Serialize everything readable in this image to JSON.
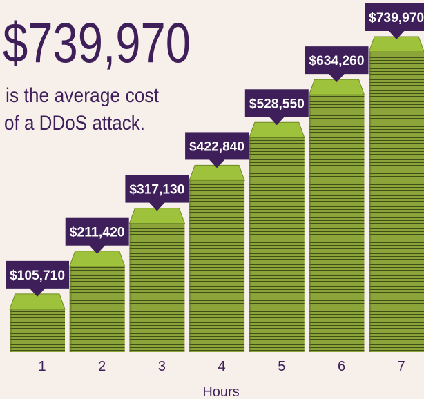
{
  "chart_data": {
    "type": "bar",
    "title": "$739,970",
    "subtitle": [
      "is the average cost",
      "of a DDoS attack."
    ],
    "x_label": "Hours",
    "categories": [
      "1",
      "2",
      "3",
      "4",
      "5",
      "6",
      "7"
    ],
    "values": [
      105710,
      211420,
      317130,
      422840,
      528550,
      634260,
      739970
    ],
    "value_labels": [
      "$105,710",
      "$211,420",
      "$317,130",
      "$422,840",
      "$528,550",
      "$634,260",
      "$739,970"
    ],
    "color": "#8ba53a",
    "label_color": "#3e1f5a"
  }
}
